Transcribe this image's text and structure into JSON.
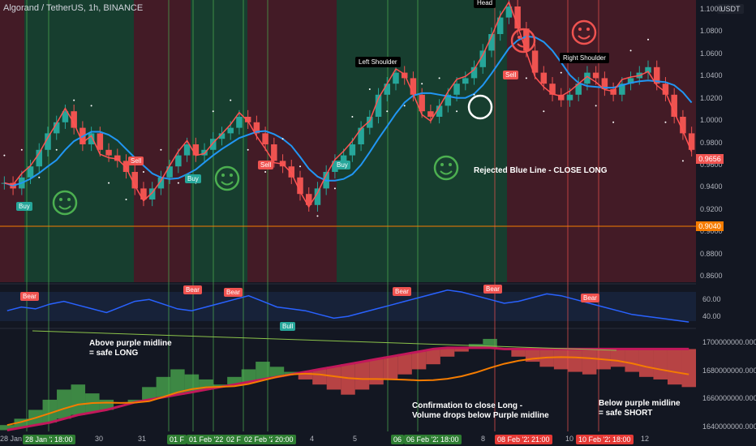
{
  "header": {
    "symbol_line": "Algorand / TetherUS, 1h, BINANCE",
    "currency": "USDT"
  },
  "colors": {
    "bull": "#26a69a",
    "bear": "#ef5350",
    "green_bg": "#1b5e3b",
    "red_bg": "#6b1f2a",
    "blue_line": "#2196f3",
    "purple": "#c2185b",
    "orange": "#f57c00"
  },
  "chart_data": [
    {
      "type": "candlestick",
      "title": "Algorand / TetherUS, 1h, BINANCE",
      "ylim": [
        0.85,
        1.1
      ],
      "y_ticks": [
        "1.1000",
        "1.0800",
        "1.0600",
        "1.0400",
        "1.0200",
        "1.0000",
        "0.9800",
        "0.9600",
        "0.9400",
        "0.9200",
        "0.9000",
        "0.8800",
        "0.8600"
      ],
      "price_tags": {
        "last": "0.9656",
        "support": "0.9040"
      },
      "close_series": [
        0.94,
        0.935,
        0.945,
        0.955,
        0.97,
        0.985,
        0.995,
        1.005,
        0.99,
        0.975,
        0.985,
        0.97,
        0.965,
        0.96,
        0.95,
        0.935,
        0.925,
        0.935,
        0.945,
        0.955,
        0.965,
        0.975,
        0.965,
        0.97,
        0.98,
        0.985,
        0.99,
        1.0,
        0.995,
        0.985,
        0.975,
        0.96,
        0.955,
        0.945,
        0.93,
        0.92,
        0.935,
        0.95,
        0.96,
        0.965,
        0.975,
        0.99,
        1.0,
        1.02,
        1.03,
        1.04,
        1.035,
        1.02,
        1.005,
        1.0,
        1.01,
        1.02,
        1.03,
        1.035,
        1.045,
        1.06,
        1.075,
        1.09,
        1.1,
        1.08,
        1.06,
        1.04,
        1.03,
        1.02,
        1.015,
        1.02,
        1.03,
        1.04,
        1.035,
        1.025,
        1.02,
        1.03,
        1.035,
        1.04,
        1.045,
        1.03,
        1.02,
        1.0,
        0.985,
        0.97
      ],
      "annotations": [
        "Head",
        "Left Shoulder",
        "Right Shoulder",
        "Rejected Blue Line - CLOSE LONG"
      ],
      "signals": [
        {
          "label": "Buy",
          "color": "#26a69a"
        },
        {
          "label": "Sell",
          "color": "#ef5350"
        },
        {
          "label": "Buy",
          "color": "#26a69a"
        },
        {
          "label": "Sell",
          "color": "#ef5350"
        },
        {
          "label": "Buy",
          "color": "#26a69a"
        },
        {
          "label": "Sell",
          "color": "#ef5350"
        }
      ]
    },
    {
      "type": "line",
      "ylim": [
        30,
        75
      ],
      "y_ticks": [
        "60.00",
        "40.00"
      ],
      "values": [
        48,
        52,
        50,
        55,
        58,
        54,
        50,
        46,
        52,
        58,
        60,
        55,
        50,
        48,
        52,
        56,
        60,
        64,
        58,
        52,
        50,
        48,
        44,
        40,
        42,
        46,
        50,
        54,
        58,
        62,
        66,
        70,
        68,
        64,
        60,
        56,
        58,
        62,
        66,
        64,
        60,
        56,
        52,
        48,
        44,
        42,
        40,
        38,
        36
      ],
      "signals": [
        {
          "label": "Bear",
          "color": "#ef5350"
        },
        {
          "label": "Bear",
          "color": "#ef5350"
        },
        {
          "label": "Bear",
          "color": "#ef5350"
        },
        {
          "label": "Bull",
          "color": "#26a69a"
        },
        {
          "label": "Bear",
          "color": "#ef5350"
        },
        {
          "label": "Bear",
          "color": "#ef5350"
        },
        {
          "label": "Bear",
          "color": "#ef5350"
        }
      ]
    },
    {
      "type": "area",
      "ylim": [
        1635000000,
        1715000000
      ],
      "y_ticks": [
        "1700000000.0000",
        "1680000000.0000",
        "1660000000.0000",
        "1640000000.0000"
      ],
      "volume_osc": [
        1640,
        1645,
        1652,
        1660,
        1668,
        1672,
        1665,
        1660,
        1655,
        1660,
        1670,
        1678,
        1684,
        1680,
        1676,
        1672,
        1678,
        1684,
        1690,
        1686,
        1682,
        1676,
        1672,
        1668,
        1664,
        1668,
        1672,
        1676,
        1680,
        1684,
        1688,
        1694,
        1698,
        1704,
        1708,
        1700,
        1694,
        1690,
        1686,
        1684,
        1682,
        1680,
        1684,
        1686,
        1682,
        1678,
        1676,
        1672,
        1670
      ],
      "purple_midline": [
        1636,
        1638,
        1640,
        1642,
        1645,
        1648,
        1650,
        1652,
        1655,
        1658,
        1660,
        1662,
        1664,
        1666,
        1668,
        1670,
        1672,
        1674,
        1676,
        1678,
        1680,
        1682,
        1684,
        1686,
        1688,
        1690,
        1692,
        1694,
        1696,
        1698,
        1700,
        1701,
        1701,
        1701,
        1701,
        1700,
        1700,
        1700,
        1700,
        1700,
        1700,
        1700,
        1700,
        1700,
        1700,
        1700,
        1700,
        1700,
        1700
      ],
      "annotations": [
        "Above purple midline\n= safe LONG",
        "Confirmation to close Long -\nVolume drops below Purple midline",
        "Below purple midline\n= safe SHORT"
      ]
    }
  ],
  "x_axis": {
    "labels": [
      {
        "text": "28 Jan",
        "hl": false
      },
      {
        "text": "28 Jan '22",
        "hl": true
      },
      {
        "text": "18:00",
        "hl": true
      },
      {
        "text": "30",
        "hl": false
      },
      {
        "text": "31",
        "hl": false
      },
      {
        "text": "01 F",
        "hl": true
      },
      {
        "text": "01 Feb '22",
        "hl": true
      },
      {
        "text": "02 F",
        "hl": true
      },
      {
        "text": "02 Feb '22",
        "hl": true
      },
      {
        "text": "20:00",
        "hl": true
      },
      {
        "text": "4",
        "hl": false
      },
      {
        "text": "5",
        "hl": false
      },
      {
        "text": "06",
        "hl": true
      },
      {
        "text": "06 Feb '22",
        "hl": true
      },
      {
        "text": "18:00",
        "hl": true
      },
      {
        "text": "8",
        "hl": false
      },
      {
        "text": "08 Feb '22",
        "hl": "red"
      },
      {
        "text": "21:00",
        "hl": "red"
      },
      {
        "text": "10",
        "hl": false
      },
      {
        "text": "10 Feb '22",
        "hl": "red"
      },
      {
        "text": "18:00",
        "hl": "red"
      },
      {
        "text": "12",
        "hl": false
      }
    ]
  }
}
